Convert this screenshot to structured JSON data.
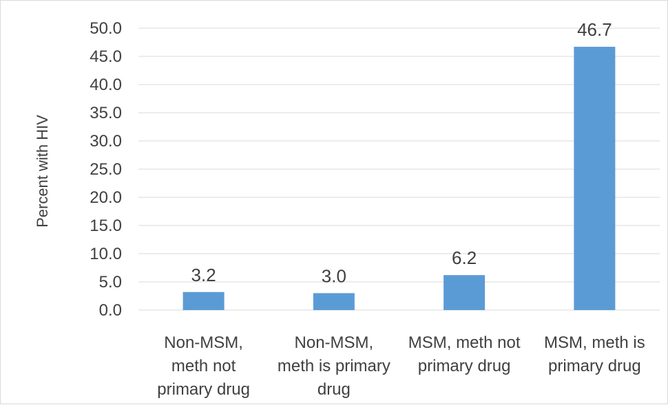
{
  "chart_data": {
    "type": "bar",
    "title": "",
    "xlabel": "",
    "ylabel": "Percent with HIV",
    "categories": [
      [
        "Non-MSM,",
        "meth not",
        "primary drug"
      ],
      [
        "Non-MSM,",
        "meth is primary",
        "drug"
      ],
      [
        "MSM, meth not",
        "primary drug"
      ],
      [
        "MSM, meth is",
        "primary drug"
      ]
    ],
    "values": [
      3.2,
      3.0,
      6.2,
      46.7
    ],
    "value_labels": [
      "3.2",
      "3.0",
      "6.2",
      "46.7"
    ],
    "ylim": [
      0,
      50
    ],
    "yticks": [
      "0.0",
      "5.0",
      "10.0",
      "15.0",
      "20.0",
      "25.0",
      "30.0",
      "35.0",
      "40.0",
      "45.0",
      "50.0"
    ],
    "grid": true,
    "legend": "none",
    "bar_color": "#5B9BD5",
    "grid_color": "#d9d9d9"
  }
}
